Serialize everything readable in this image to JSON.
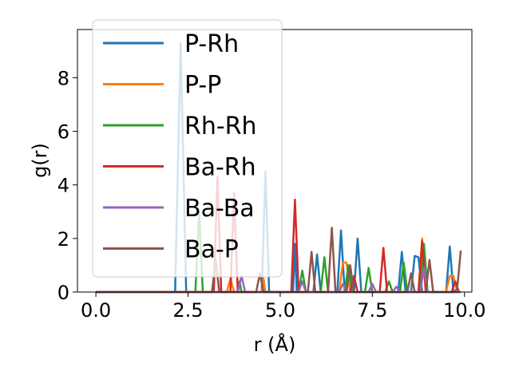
{
  "chart_data": {
    "type": "line",
    "xlabel": "r (Å)",
    "ylabel": "g(r)",
    "xlim": [
      -0.5,
      10.2
    ],
    "ylim": [
      0,
      9.8
    ],
    "xticks": [
      "0.0",
      "2.5",
      "5.0",
      "7.5",
      "10.0"
    ],
    "xtick_values": [
      0,
      2.5,
      5,
      7.5,
      10
    ],
    "yticks": [
      "0",
      "2",
      "4",
      "6",
      "8"
    ],
    "ytick_values": [
      0,
      2,
      4,
      6,
      8
    ],
    "grid": false,
    "legend_position": "upper-left",
    "series": [
      {
        "name": "P-Rh",
        "color": "#1f77b4",
        "x": [
          0,
          2.15,
          2.3,
          2.45,
          4.5,
          4.6,
          4.7,
          5.35,
          5.4,
          5.45,
          5.9,
          6.0,
          6.1,
          6.55,
          6.65,
          6.75,
          7.0,
          7.1,
          7.2,
          8.2,
          8.3,
          8.4,
          8.55,
          8.65,
          8.75,
          8.85,
          9.5,
          9.6,
          9.7,
          9.9
        ],
        "y": [
          0,
          0,
          9.3,
          0,
          0,
          4.5,
          0,
          0,
          1.8,
          0,
          0,
          1.4,
          0,
          0,
          2.3,
          0,
          0,
          2.0,
          0,
          0,
          1.5,
          0,
          0,
          1.35,
          1.3,
          0,
          0,
          1.7,
          0,
          0
        ]
      },
      {
        "name": "P-P",
        "color": "#ff7f0e",
        "x": [
          0,
          3.55,
          3.65,
          3.75,
          4.5,
          4.55,
          4.6,
          6.6,
          6.7,
          6.8,
          6.9,
          8.75,
          8.85,
          8.95,
          9.5,
          9.6,
          9.7,
          9.8
        ],
        "y": [
          0,
          0,
          0.5,
          0,
          0,
          0.5,
          0,
          0,
          1.1,
          1.1,
          0,
          0,
          2.0,
          0,
          0,
          0.6,
          0.6,
          0
        ]
      },
      {
        "name": "Rh-Rh",
        "color": "#2ca02c",
        "x": [
          0,
          2.7,
          2.8,
          2.9,
          3.85,
          3.9,
          3.95,
          5.5,
          5.6,
          5.7,
          6.1,
          6.2,
          6.3,
          6.75,
          6.85,
          6.95,
          7.3,
          7.4,
          7.5,
          7.85,
          7.95,
          8.05,
          8.25,
          8.35,
          8.45,
          8.8,
          8.9,
          9.0,
          9.9
        ],
        "y": [
          0,
          0,
          3.0,
          0,
          0,
          0.4,
          0,
          0,
          0.8,
          0,
          0,
          1.3,
          0,
          0,
          1.0,
          0,
          0,
          0.9,
          0,
          0,
          0.4,
          0,
          0,
          1.1,
          0,
          0,
          1.8,
          0,
          0
        ]
      },
      {
        "name": "Ba-Rh",
        "color": "#d62728",
        "x": [
          0,
          3.2,
          3.3,
          3.4,
          3.65,
          3.75,
          3.85,
          5.3,
          5.4,
          5.5,
          6.9,
          7.0,
          7.1,
          7.7,
          7.8,
          7.9,
          8.75,
          8.85,
          8.95,
          9.65,
          9.75,
          9.85
        ],
        "y": [
          0,
          0,
          4.3,
          0,
          0,
          3.7,
          0,
          0,
          3.45,
          0,
          0,
          0.6,
          0,
          0,
          1.65,
          0,
          0,
          1.9,
          0,
          0,
          0.4,
          0
        ]
      },
      {
        "name": "Ba-Ba",
        "color": "#9467bd",
        "x": [
          0,
          3.85,
          3.95,
          4.05,
          5.5,
          5.6,
          5.7,
          6.6,
          6.7,
          6.8,
          7.4,
          7.5,
          7.6,
          8.05,
          8.15,
          8.25,
          8.8,
          8.9,
          9.0,
          9.9
        ],
        "y": [
          0,
          0,
          0.6,
          0,
          0,
          0.4,
          0,
          0,
          0.3,
          0,
          0,
          0.3,
          0,
          0,
          0.2,
          0,
          0,
          0.9,
          0,
          0
        ]
      },
      {
        "name": "Ba-P",
        "color": "#8c564b",
        "x": [
          0,
          3.15,
          3.25,
          3.35,
          4.35,
          4.45,
          4.55,
          5.75,
          5.85,
          5.95,
          6.3,
          6.4,
          6.5,
          6.8,
          6.9,
          7.0,
          8.45,
          8.55,
          8.65,
          8.95,
          9.05,
          9.15,
          9.7,
          9.8,
          9.9
        ],
        "y": [
          0,
          0,
          1.2,
          0,
          0,
          0.7,
          0,
          0,
          1.5,
          0,
          0,
          2.4,
          0,
          0,
          1.0,
          0,
          0,
          0.7,
          0,
          0,
          1.2,
          0,
          0,
          0.1,
          1.55
        ]
      }
    ]
  }
}
